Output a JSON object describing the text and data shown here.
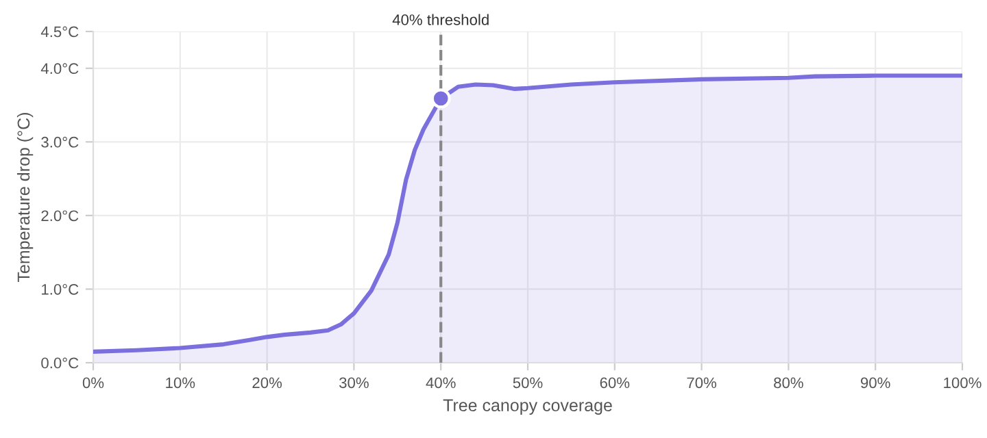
{
  "chart_data": {
    "type": "area",
    "xlabel": "Tree canopy coverage",
    "ylabel": "Temperature drop (°C)",
    "series": [
      {
        "color": "#7b6fdd",
        "marker": "none",
        "x": [
          0,
          5,
          10,
          15,
          18,
          20,
          22,
          25,
          27,
          28.5,
          30,
          32,
          34,
          35,
          36,
          37,
          38,
          40,
          42,
          44,
          46,
          48.5,
          50,
          55,
          60,
          70,
          80,
          83,
          90,
          100
        ],
        "values": [
          0.15,
          0.17,
          0.2,
          0.25,
          0.31,
          0.35,
          0.38,
          0.41,
          0.44,
          0.52,
          0.67,
          0.98,
          1.47,
          1.9,
          2.49,
          2.89,
          3.17,
          3.59,
          3.75,
          3.78,
          3.77,
          3.72,
          3.73,
          3.78,
          3.81,
          3.85,
          3.87,
          3.89,
          3.9,
          3.9
        ]
      },
      {
        "type": "scatter",
        "color": "#7b6fdd",
        "marker": "circle",
        "x": [
          40
        ],
        "values": [
          3.59
        ]
      }
    ],
    "xlim": [
      0,
      100
    ],
    "xticks": [
      {
        "value": 0,
        "label": "0%"
      },
      {
        "value": 10,
        "label": "10%"
      },
      {
        "value": 20,
        "label": "20%"
      },
      {
        "value": 30,
        "label": "30%"
      },
      {
        "value": 40,
        "label": "40%"
      },
      {
        "value": 50,
        "label": "50%"
      },
      {
        "value": 60,
        "label": "60%"
      },
      {
        "value": 70,
        "label": "70%"
      },
      {
        "value": 80,
        "label": "80%"
      },
      {
        "value": 90,
        "label": "90%"
      },
      {
        "value": 100,
        "label": "100%"
      }
    ],
    "ylim": [
      0,
      4.5
    ],
    "yticks": [
      {
        "value": 0,
        "label": "0.0°C"
      },
      {
        "value": 1,
        "label": "1.0°C"
      },
      {
        "value": 2,
        "label": "2.0°C"
      },
      {
        "value": 3,
        "label": "3.0°C"
      },
      {
        "value": 4,
        "label": "4.0°C"
      },
      {
        "value": 4.5,
        "label": "4.5°C"
      }
    ],
    "ref_lines": [
      {
        "axis": "x",
        "value": 40,
        "label": "40% threshold",
        "color": "#888888",
        "line_style": "dashed"
      }
    ],
    "grid": true
  }
}
